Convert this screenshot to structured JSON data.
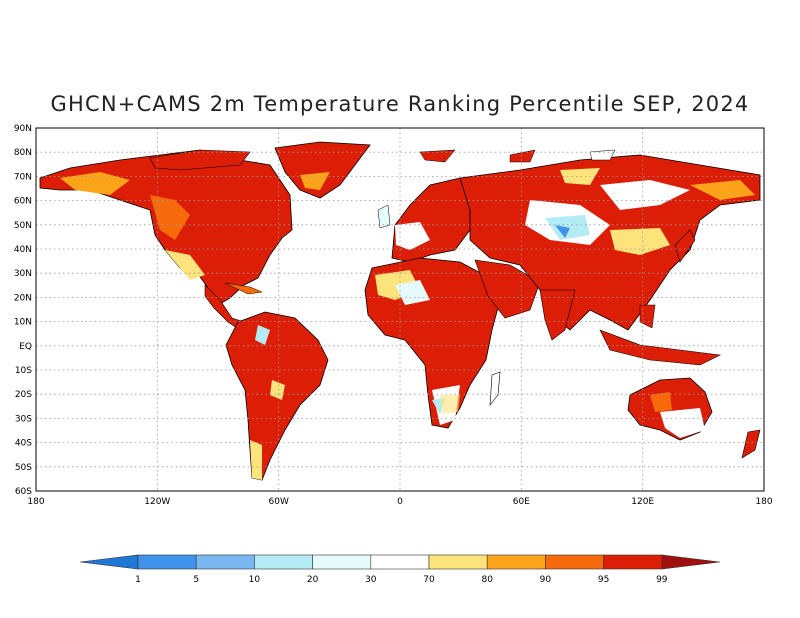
{
  "title": "GHCN+CAMS 2m Temperature Ranking Percentile SEP, 2024",
  "lat_labels": [
    "90N",
    "80N",
    "70N",
    "60N",
    "50N",
    "40N",
    "30N",
    "20N",
    "10N",
    "EQ",
    "10S",
    "20S",
    "30S",
    "40S",
    "50S",
    "60S"
  ],
  "lon_labels": [
    "180",
    "120W",
    "60W",
    "0",
    "60E",
    "120E",
    "180"
  ],
  "colorbar": {
    "labels": [
      "1",
      "5",
      "10",
      "20",
      "30",
      "70",
      "80",
      "90",
      "95",
      "99"
    ],
    "colors": [
      "#1f78d8",
      "#3f93ea",
      "#7ab8f2",
      "#b4ecf6",
      "#e6fbfb",
      "#ffffff",
      "#fde37c",
      "#fba41a",
      "#f66a0c",
      "#dd1e06",
      "#a01010"
    ]
  }
}
